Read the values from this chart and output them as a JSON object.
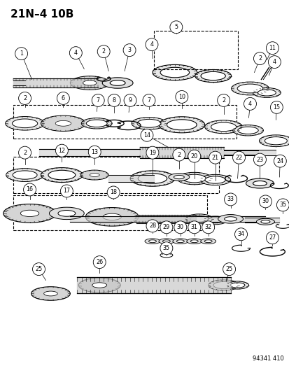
{
  "title": "21N–4 10B",
  "catalog_number": "94341 410",
  "bg_color": "#ffffff",
  "line_color": "#000000",
  "fig_width": 4.14,
  "fig_height": 5.33,
  "dpi": 100,
  "perspective_ratio": 0.35,
  "lw_base": 0.7
}
